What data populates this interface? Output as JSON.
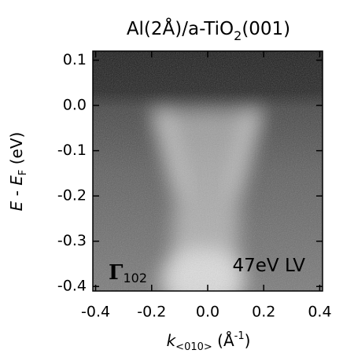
{
  "chart_data": {
    "type": "image",
    "title_parts": [
      "Al(2Å)/a-TiO",
      "2",
      "(001)"
    ],
    "xlabel_parts": [
      "k",
      "<010>",
      " (Å",
      "-1",
      ")"
    ],
    "ylabel_parts": [
      "E",
      " - ",
      "E",
      "F",
      " (eV)"
    ],
    "annotations": [
      {
        "text": "Γ",
        "sub": "102"
      },
      {
        "text": "47eV LV"
      }
    ],
    "xlim": [
      -0.41,
      0.41
    ],
    "ylim": [
      -0.41,
      0.12
    ],
    "xticks": [
      -0.4,
      -0.2,
      {
        "value": 0,
        "label": "0.0"
      },
      0.2,
      0.4
    ],
    "yticks": [
      0.1,
      {
        "value": 0,
        "label": "0.0"
      },
      -0.1,
      -0.2,
      -0.3,
      -0.4
    ]
  }
}
